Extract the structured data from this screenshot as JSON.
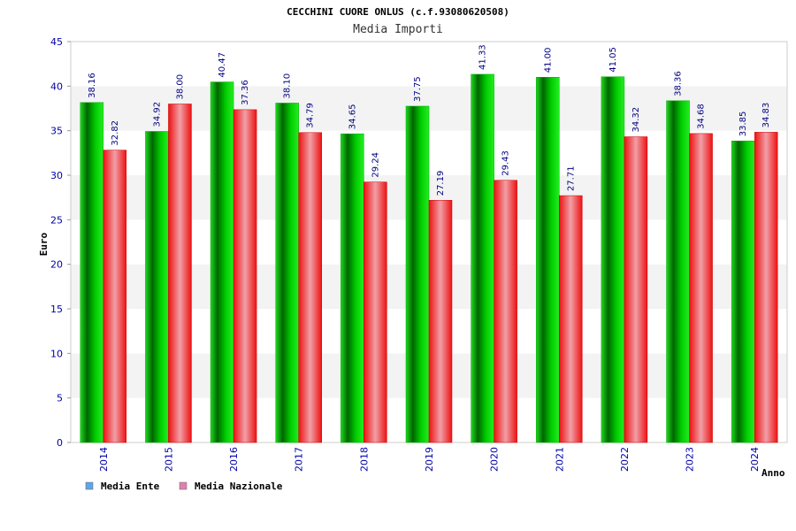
{
  "chart_data": {
    "type": "bar",
    "title": "CECCHINI CUORE ONLUS (c.f.93080620508)",
    "subtitle": "Media Importi",
    "xlabel": "Anno",
    "ylabel": "Euro",
    "ylim": [
      0,
      45
    ],
    "yticks": [
      0,
      5,
      10,
      15,
      20,
      25,
      30,
      35,
      40,
      45
    ],
    "grid": true,
    "legend_position": "bottom-left",
    "categories": [
      "2014",
      "2015",
      "2016",
      "2017",
      "2018",
      "2019",
      "2020",
      "2021",
      "2022",
      "2023",
      "2024"
    ],
    "series": [
      {
        "name": "Media Ente",
        "color": "#00cc00",
        "legend_color": "#5fa5e8",
        "values": [
          38.16,
          34.92,
          40.47,
          38.1,
          34.65,
          37.75,
          41.33,
          41.0,
          41.05,
          38.36,
          33.85
        ],
        "labels": [
          "38.16",
          "34.92",
          "40.47",
          "38.10",
          "34.65",
          "37.75",
          "41.33",
          "41.00",
          "41.05",
          "38.36",
          "33.85"
        ]
      },
      {
        "name": "Media Nazionale",
        "color": "#ee1122",
        "legend_color": "#e080b0",
        "values": [
          32.82,
          38.0,
          37.36,
          34.79,
          29.24,
          27.19,
          29.43,
          27.71,
          34.32,
          34.68,
          34.83
        ],
        "labels": [
          "32.82",
          "38.00",
          "37.36",
          "34.79",
          "29.24",
          "27.19",
          "29.43",
          "27.71",
          "34.32",
          "34.68",
          "34.83"
        ]
      }
    ]
  }
}
